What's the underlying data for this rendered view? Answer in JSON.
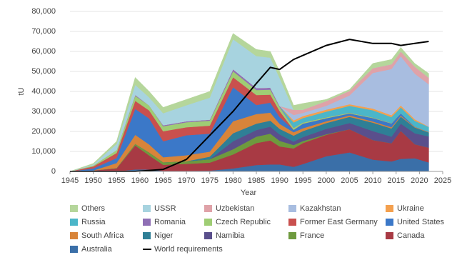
{
  "chart_data": {
    "type": "stacked-area",
    "x_label": "Year",
    "y_label": "tU",
    "x": [
      1945,
      1950,
      1955,
      1959,
      1962,
      1965,
      1970,
      1975,
      1980,
      1985,
      1988,
      1990,
      1993,
      1995,
      2000,
      2005,
      2010,
      2014,
      2016,
      2019,
      2022
    ],
    "xlim": [
      1945,
      2025
    ],
    "xticks": [
      1945,
      1950,
      1955,
      1960,
      1965,
      1970,
      1975,
      1980,
      1985,
      1990,
      1995,
      2000,
      2005,
      2010,
      2015,
      2020,
      2025
    ],
    "ylim": [
      0,
      80000
    ],
    "yticks": [
      0,
      {
        "value": 10000,
        "label": "10,000"
      },
      {
        "value": 20000,
        "label": "20,000"
      },
      {
        "value": 30000,
        "label": "30,000"
      },
      {
        "value": 40000,
        "label": "40,000"
      },
      {
        "value": 50000,
        "label": "50,000"
      },
      {
        "value": 60000,
        "label": "60,000"
      },
      {
        "value": 70000,
        "label": "70,000"
      },
      {
        "value": 80000,
        "label": "80,000"
      }
    ],
    "grid": true,
    "series": [
      {
        "name": "Others",
        "color": "#b5d69b",
        "values": [
          0,
          500,
          1300,
          3700,
          3000,
          2900,
          2900,
          3100,
          2900,
          3300,
          3100,
          3300,
          2200,
          3100,
          800,
          700,
          2350,
          2400,
          2000,
          1600,
          2100
        ]
      },
      {
        "name": "USSR",
        "color": "#a7d3df",
        "values": [
          0,
          500,
          3000,
          5000,
          4000,
          6000,
          8000,
          11000,
          15000,
          16000,
          15000,
          14000,
          0,
          0,
          0,
          0,
          0,
          0,
          0,
          0,
          0
        ]
      },
      {
        "name": "Uzbekistan",
        "color": "#dfa2a8",
        "values": [
          0,
          0,
          0,
          0,
          0,
          0,
          0,
          0,
          0,
          0,
          0,
          0,
          2600,
          1600,
          2400,
          2300,
          2400,
          2400,
          2400,
          3500,
          3300
        ]
      },
      {
        "name": "Kazakhstan",
        "color": "#a8bde0",
        "values": [
          0,
          0,
          0,
          0,
          0,
          0,
          0,
          0,
          0,
          0,
          0,
          0,
          2700,
          1600,
          1900,
          4400,
          17800,
          23100,
          24600,
          22800,
          21200
        ]
      },
      {
        "name": "Ukraine",
        "color": "#f4a04e",
        "values": [
          0,
          0,
          0,
          0,
          0,
          0,
          0,
          0,
          0,
          0,
          0,
          0,
          1000,
          1000,
          1000,
          800,
          850,
          900,
          1000,
          800,
          100
        ]
      },
      {
        "name": "Russia",
        "color": "#4bb6c9",
        "values": [
          0,
          0,
          0,
          0,
          0,
          0,
          0,
          0,
          0,
          0,
          0,
          0,
          2600,
          2200,
          2800,
          3400,
          3600,
          3000,
          3000,
          2900,
          2500
        ]
      },
      {
        "name": "Romania",
        "color": "#8f6fb5",
        "values": [
          0,
          0,
          0,
          500,
          0,
          500,
          500,
          500,
          1000,
          1000,
          1000,
          500,
          100,
          0,
          0,
          0,
          0,
          0,
          0,
          0,
          0
        ]
      },
      {
        "name": "Czech Republic",
        "color": "#9fcd74",
        "values": [
          0,
          500,
          1500,
          2500,
          2500,
          2500,
          2500,
          2500,
          3000,
          2500,
          2500,
          2000,
          1000,
          600,
          500,
          400,
          300,
          200,
          0,
          0,
          0
        ]
      },
      {
        "name": "Former East Germany",
        "color": "#c9504e",
        "values": [
          0,
          1000,
          2500,
          4000,
          4000,
          5000,
          4000,
          4000,
          5000,
          5000,
          4000,
          3000,
          0,
          0,
          0,
          0,
          0,
          0,
          0,
          0,
          0
        ]
      },
      {
        "name": "United States",
        "color": "#3b78c8",
        "values": [
          0,
          1000,
          2500,
          13000,
          13000,
          8000,
          10000,
          9000,
          17000,
          4500,
          5000,
          3400,
          1200,
          2300,
          1500,
          1000,
          1700,
          1900,
          1100,
          100,
          75
        ]
      },
      {
        "name": "South Africa",
        "color": "#d8843a",
        "values": [
          0,
          0,
          2500,
          4500,
          4000,
          2500,
          3000,
          2500,
          6000,
          4800,
          4000,
          2500,
          1700,
          1400,
          900,
          700,
          600,
          600,
          500,
          300,
          200
        ]
      },
      {
        "name": "Niger",
        "color": "#2f7f96",
        "values": [
          0,
          0,
          0,
          0,
          0,
          0,
          0,
          1300,
          4000,
          3200,
          3000,
          2800,
          3000,
          3000,
          2900,
          3100,
          4200,
          4100,
          3500,
          2900,
          2000
        ]
      },
      {
        "name": "Namibia",
        "color": "#5a4f8c",
        "values": [
          0,
          0,
          0,
          0,
          0,
          0,
          0,
          0,
          4000,
          3300,
          3500,
          3200,
          1700,
          2000,
          2700,
          3100,
          4500,
          3300,
          3600,
          5500,
          5600
        ]
      },
      {
        "name": "France",
        "color": "#6e9a3e",
        "values": [
          0,
          0,
          200,
          800,
          1500,
          1300,
          1300,
          1700,
          2600,
          3200,
          3400,
          2800,
          1700,
          1000,
          300,
          0,
          0,
          0,
          0,
          0,
          0
        ]
      },
      {
        "name": "Canada",
        "color": "#a83a44",
        "values": [
          0,
          500,
          1500,
          12000,
          7000,
          3000,
          3500,
          4000,
          7000,
          11000,
          12000,
          9000,
          9200,
          10500,
          10700,
          11600,
          9800,
          9100,
          14000,
          7000,
          7400
        ]
      },
      {
        "name": "Australia",
        "color": "#3a6fa8",
        "values": [
          0,
          0,
          0,
          1000,
          1000,
          300,
          300,
          400,
          1500,
          3200,
          3500,
          3500,
          2300,
          3700,
          7600,
          9500,
          5900,
          5000,
          6300,
          6600,
          4500
        ]
      },
      {
        "name": "World requirements",
        "color": "#000000",
        "type": "line",
        "values": [
          0,
          0,
          0,
          0,
          500,
          1000,
          6000,
          18000,
          30000,
          44000,
          52000,
          51000,
          56000,
          58000,
          63000,
          66000,
          64000,
          64000,
          63000,
          64000,
          65000
        ]
      }
    ]
  }
}
